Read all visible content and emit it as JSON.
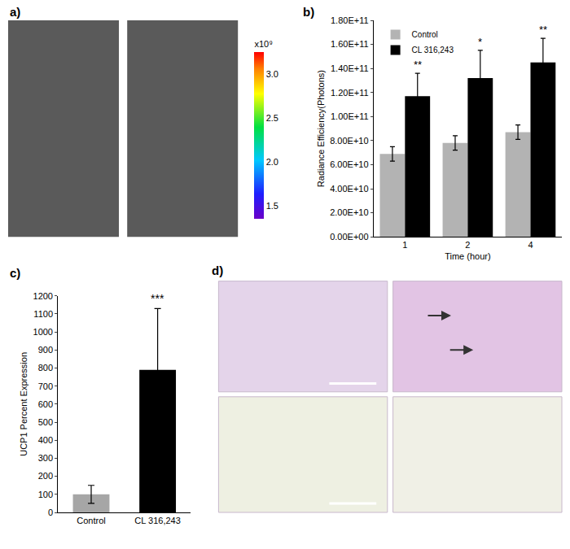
{
  "chart_data": [
    {
      "panel": "a)",
      "type": "image",
      "colorbar": {
        "range": [
          1.35,
          3.25
        ],
        "ticks": [
          1.5,
          {
            "value": 2,
            "label": "2.0"
          },
          2.5,
          {
            "value": 3,
            "label": "3.0"
          }
        ],
        "label": "x10⁹"
      }
    },
    {
      "panel": "b)",
      "type": "bar",
      "categories": [
        "1",
        "2",
        "4"
      ],
      "x_label": "Time (hour)",
      "y_label": "Radiance Efficiency(Photons)",
      "series": [
        {
          "name": "Control",
          "color": "#b3b3b3",
          "values": [
            69000000000,
            78000000000,
            87000000000
          ],
          "error": [
            6000000000,
            6000000000,
            6000000000
          ]
        },
        {
          "name": "CL 316,243",
          "color": "#000000",
          "values": [
            117000000000,
            132000000000,
            145000000000
          ],
          "error": [
            19000000000,
            23000000000,
            20000000000
          ],
          "annotations": [
            "**",
            "*",
            "**"
          ]
        }
      ],
      "ylim": [
        0,
        180000000000
      ],
      "yticks": [
        {
          "value": 0,
          "label": "0.00E+00"
        },
        {
          "value": 20000000000,
          "label": "2.00E+10"
        },
        {
          "value": 40000000000,
          "label": "4.00E+10"
        },
        {
          "value": 60000000000,
          "label": "6.00E+10"
        },
        {
          "value": 80000000000,
          "label": "8.00E+10"
        },
        {
          "value": 100000000000,
          "label": "1.00E+11"
        },
        {
          "value": 120000000000,
          "label": "1.20E+11"
        },
        {
          "value": 140000000000,
          "label": "1.40E+11"
        },
        {
          "value": 160000000000,
          "label": "1.60E+11"
        },
        {
          "value": 180000000000,
          "label": "1.80E+11"
        }
      ],
      "legend": "upper left"
    },
    {
      "panel": "c)",
      "type": "bar",
      "categories": [
        "Control",
        "CL 316,243"
      ],
      "y_label": "UCP1 Percent Expression",
      "values": [
        100,
        790
      ],
      "error": [
        50,
        340
      ],
      "colors": [
        "#a6a6a6",
        "#000000"
      ],
      "annotations": [
        null,
        "***"
      ],
      "ylim": [
        0,
        1200
      ],
      "yticks": [
        0,
        100,
        200,
        300,
        400,
        500,
        600,
        700,
        800,
        900,
        1000,
        1100,
        1200
      ]
    },
    {
      "panel": "d)",
      "type": "image"
    }
  ]
}
